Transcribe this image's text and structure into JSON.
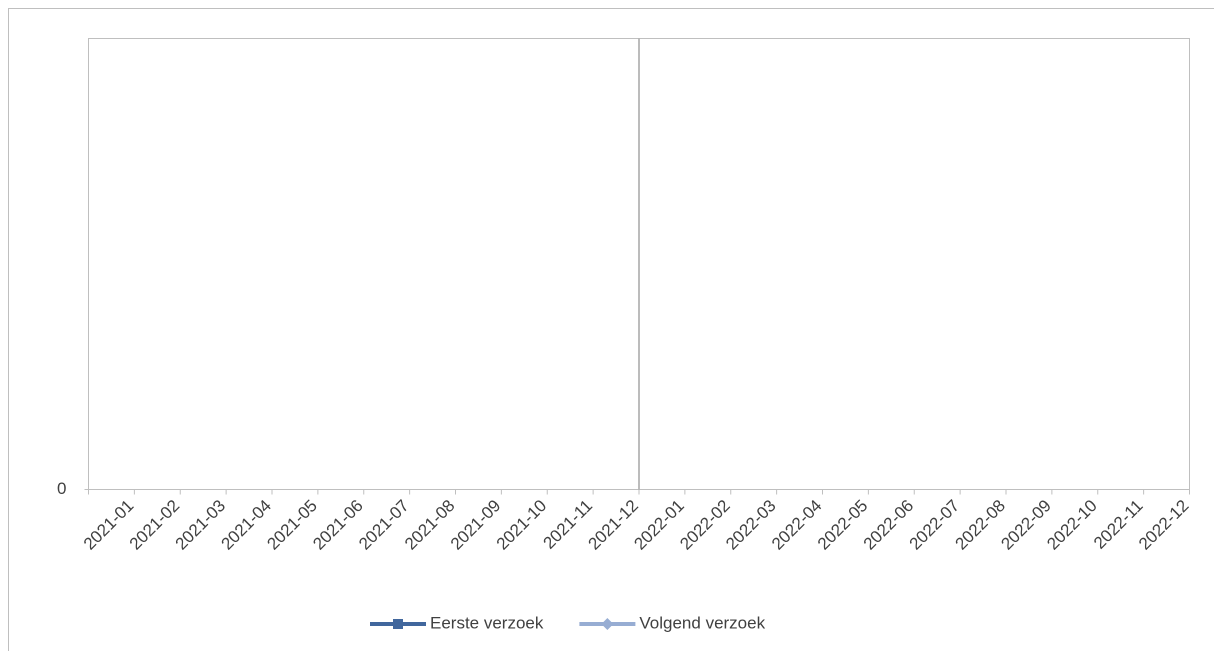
{
  "chart_data": {
    "type": "line",
    "categories": [
      "2021-01",
      "2021-02",
      "2021-03",
      "2021-04",
      "2021-05",
      "2021-06",
      "2021-07",
      "2021-08",
      "2021-09",
      "2021-10",
      "2021-11",
      "2021-12",
      "2022-01",
      "2022-02",
      "2022-03",
      "2022-04",
      "2022-05",
      "2022-06",
      "2022-07",
      "2022-08",
      "2022-09",
      "2022-10",
      "2022-11",
      "2022-12"
    ],
    "series": [
      {
        "name": "Eerste verzoek",
        "color": "#41679d",
        "marker": "square",
        "values": [
          null,
          null,
          null,
          null,
          null,
          null,
          null,
          null,
          null,
          null,
          null,
          null,
          null,
          null,
          null,
          null,
          null,
          null,
          null,
          null,
          null,
          null,
          null,
          null
        ]
      },
      {
        "name": "Volgend verzoek",
        "color": "#97add3",
        "marker": "diamond",
        "values": [
          null,
          null,
          null,
          null,
          null,
          null,
          null,
          null,
          null,
          null,
          null,
          null,
          null,
          null,
          null,
          null,
          null,
          null,
          null,
          null,
          null,
          null,
          null,
          null
        ]
      }
    ],
    "ylim": [
      0,
      1
    ],
    "yticks": [
      0
    ],
    "legend": "bottom"
  }
}
